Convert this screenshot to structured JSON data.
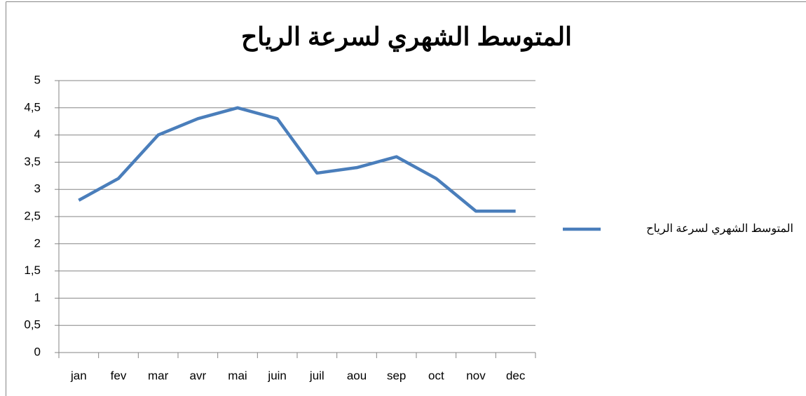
{
  "chart_data": {
    "type": "line",
    "title": "المتوسط الشهري لسرعة الرياح",
    "categories": [
      "jan",
      "fev",
      "mar",
      "avr",
      "mai",
      "juin",
      "juil",
      "aou",
      "sep",
      "oct",
      "nov",
      "dec"
    ],
    "series": [
      {
        "name": "المتوسط الشهري لسرعة الرياح",
        "color": "#4a7ebb",
        "values": [
          2.8,
          3.2,
          4.0,
          4.3,
          4.5,
          4.3,
          3.3,
          3.4,
          3.6,
          3.2,
          2.6,
          2.6
        ]
      }
    ],
    "ylim": [
      0,
      5
    ],
    "yticks": [
      0,
      {
        "value": 0.5,
        "label": "0,5"
      },
      1,
      {
        "value": 1.5,
        "label": "1,5"
      },
      2,
      {
        "value": 2.5,
        "label": "2,5"
      },
      3,
      {
        "value": 3.5,
        "label": "3,5"
      },
      4,
      {
        "value": 4.5,
        "label": "4,5"
      },
      5
    ],
    "grid": true,
    "legend": "right"
  }
}
